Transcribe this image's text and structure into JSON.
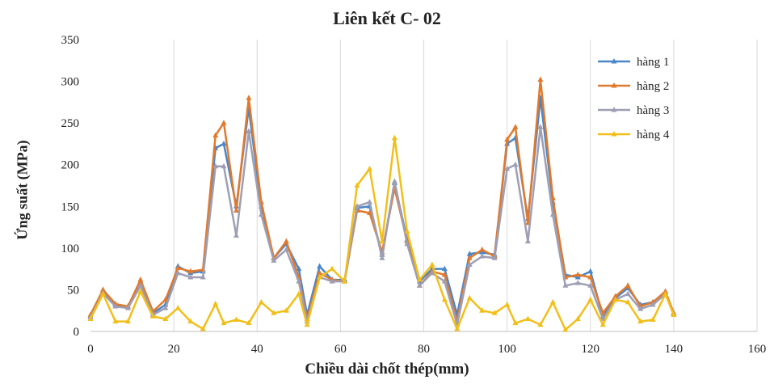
{
  "chart_data": {
    "type": "line",
    "title": "Liên kết C- 02",
    "xlabel": "Chiều dài chốt thép(mm)",
    "ylabel": "Ứng suất (MPa)",
    "xlim": [
      0,
      160
    ],
    "ylim": [
      0,
      350
    ],
    "xticks": [
      0,
      20,
      40,
      60,
      80,
      100,
      120,
      140,
      160
    ],
    "yticks": [
      0,
      50,
      100,
      150,
      200,
      250,
      300,
      350
    ],
    "grid": "vertical",
    "legend_position": "top-right",
    "x": [
      0,
      3,
      6,
      9,
      12,
      15,
      18,
      21,
      24,
      27,
      30,
      32,
      35,
      38,
      41,
      44,
      47,
      50,
      52,
      55,
      58,
      61,
      64,
      67,
      70,
      73,
      76,
      79,
      82,
      85,
      88,
      91,
      94,
      97,
      100,
      102,
      105,
      108,
      111,
      114,
      117,
      120,
      123,
      126,
      129,
      132,
      135,
      138,
      140
    ],
    "series": [
      {
        "name": "hàng 1",
        "color": "#4a86c8",
        "values": [
          18,
          48,
          32,
          30,
          60,
          22,
          32,
          78,
          70,
          72,
          220,
          225,
          150,
          268,
          150,
          88,
          105,
          75,
          20,
          78,
          62,
          62,
          148,
          150,
          92,
          178,
          110,
          60,
          75,
          75,
          20,
          93,
          95,
          92,
          225,
          232,
          135,
          280,
          155,
          68,
          65,
          72,
          18,
          40,
          52,
          32,
          35,
          47,
          22
        ]
      },
      {
        "name": "hàng 2",
        "color": "#e07a2e",
        "values": [
          20,
          50,
          33,
          30,
          62,
          24,
          38,
          76,
          72,
          74,
          235,
          250,
          145,
          280,
          155,
          88,
          108,
          65,
          15,
          70,
          62,
          60,
          145,
          142,
          95,
          172,
          108,
          55,
          72,
          68,
          12,
          88,
          98,
          90,
          230,
          245,
          130,
          302,
          160,
          65,
          68,
          65,
          22,
          42,
          55,
          30,
          35,
          48,
          22
        ]
      },
      {
        "name": "hàng 3",
        "color": "#9e9eb4",
        "values": [
          17,
          46,
          30,
          28,
          55,
          20,
          28,
          70,
          65,
          65,
          198,
          198,
          115,
          240,
          140,
          85,
          98,
          60,
          12,
          65,
          60,
          60,
          150,
          155,
          88,
          180,
          105,
          55,
          70,
          60,
          8,
          80,
          90,
          88,
          195,
          200,
          108,
          245,
          140,
          55,
          58,
          55,
          15,
          38,
          45,
          27,
          32,
          45,
          20
        ]
      },
      {
        "name": "hàng 4",
        "color": "#f2bf1a",
        "values": [
          15,
          45,
          12,
          12,
          48,
          18,
          15,
          28,
          12,
          3,
          33,
          10,
          14,
          10,
          35,
          22,
          25,
          45,
          8,
          65,
          75,
          60,
          175,
          195,
          108,
          232,
          120,
          62,
          80,
          38,
          3,
          40,
          25,
          22,
          32,
          10,
          15,
          8,
          35,
          2,
          15,
          38,
          8,
          38,
          35,
          12,
          14,
          45,
          20
        ]
      }
    ]
  }
}
